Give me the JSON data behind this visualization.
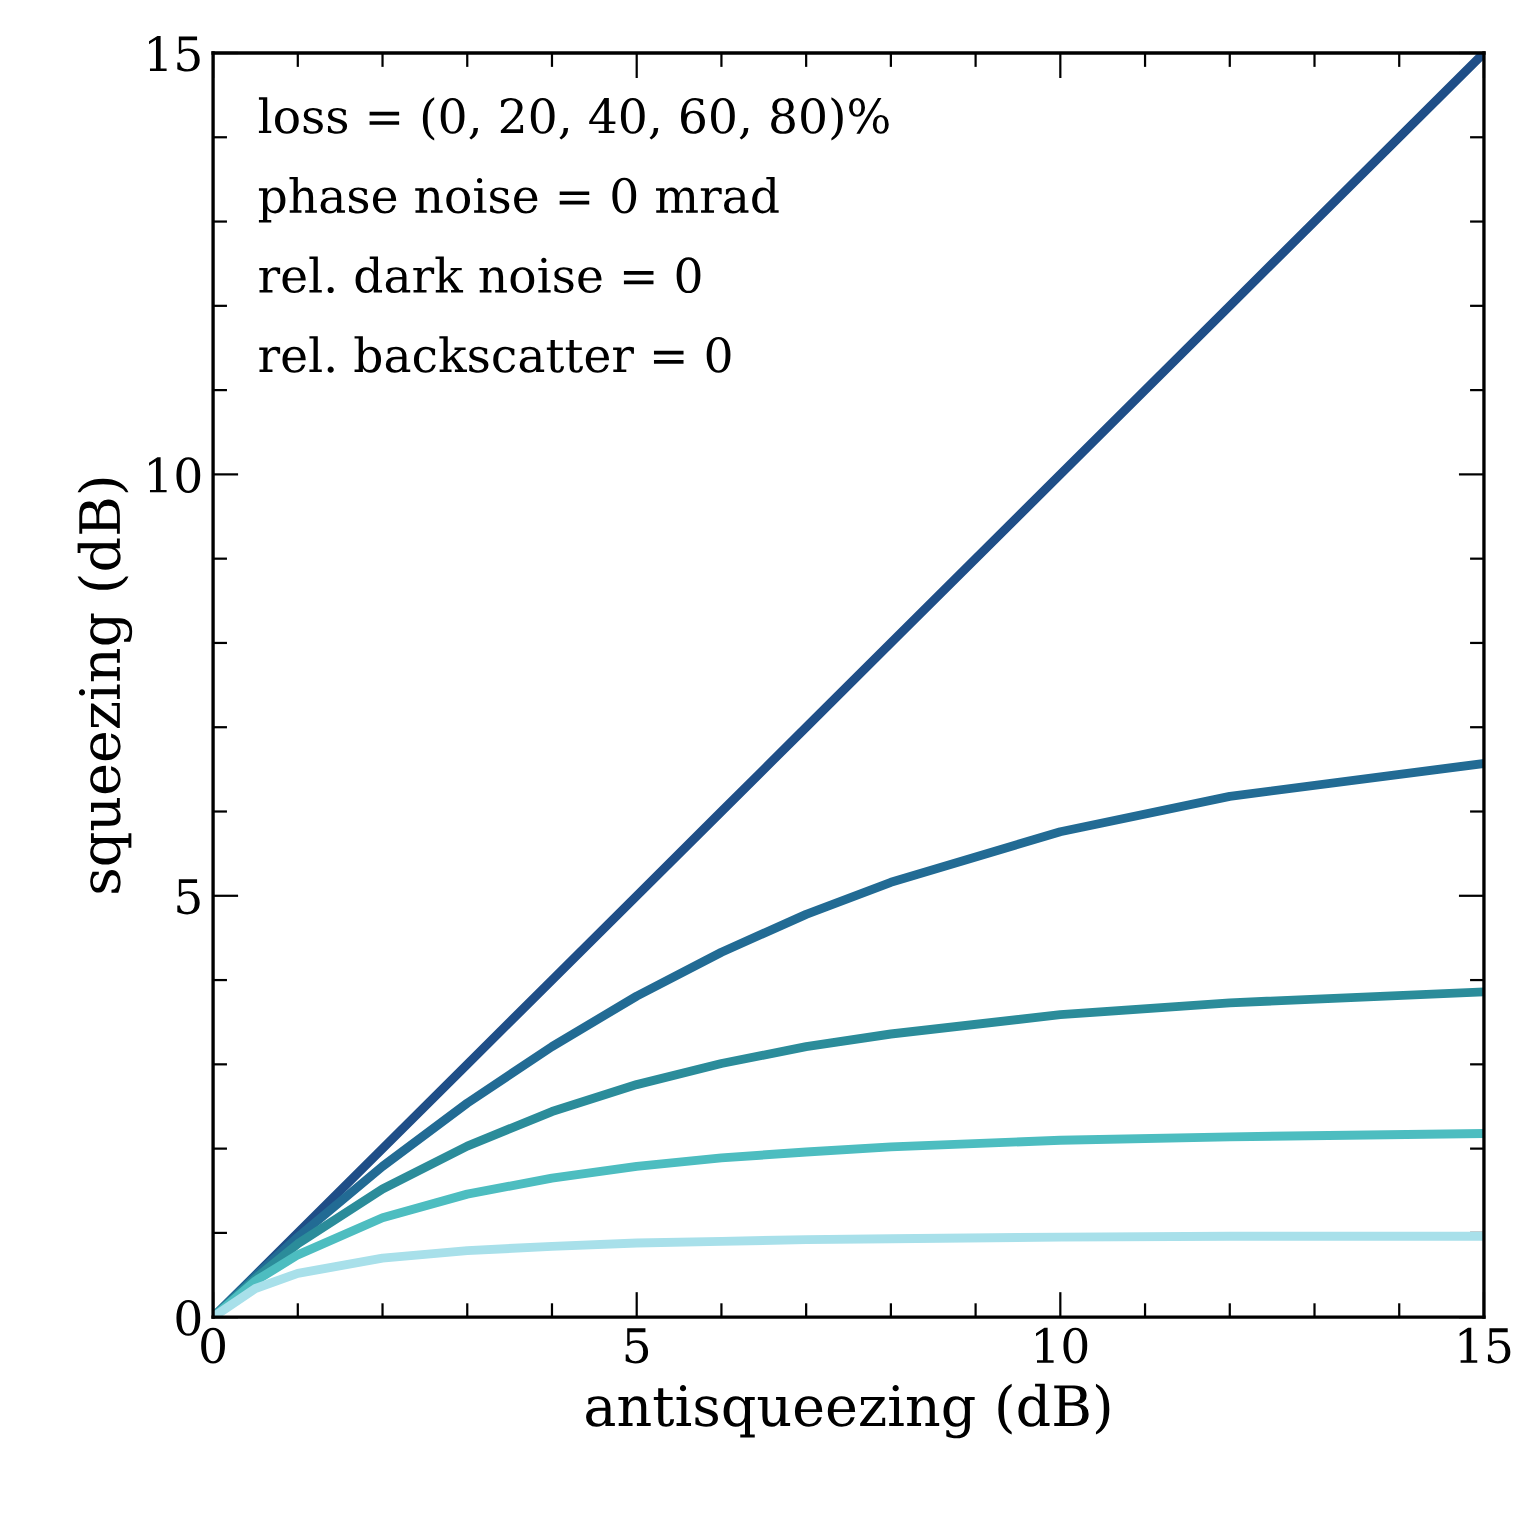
{
  "chart_data": {
    "type": "line",
    "xlabel": "antisqueezing (dB)",
    "ylabel": "squeezing (dB)",
    "annotations": [
      "loss = (0, 20, 40, 60, 80)%",
      "phase noise = 0 mrad",
      "rel. dark noise = 0",
      "rel. backscatter = 0"
    ],
    "x": [
      0,
      0.5,
      1,
      2,
      3,
      4,
      5,
      6,
      7,
      8,
      10,
      12,
      15
    ],
    "series": [
      {
        "color": "#1f4e87",
        "values": [
          0,
          0.5,
          1,
          2,
          3,
          4,
          5,
          6,
          7,
          8,
          10,
          12,
          15
        ]
      },
      {
        "color": "#226b94",
        "values": [
          0,
          0.49,
          0.95,
          1.79,
          2.54,
          3.21,
          3.81,
          4.33,
          4.78,
          5.16,
          5.76,
          6.18,
          6.57
        ]
      },
      {
        "color": "#2b8c9a",
        "values": [
          0,
          0.46,
          0.87,
          1.52,
          2.03,
          2.44,
          2.76,
          3.01,
          3.21,
          3.36,
          3.59,
          3.73,
          3.86
        ]
      },
      {
        "color": "#4dbdc0",
        "values": [
          0,
          0.43,
          0.74,
          1.18,
          1.46,
          1.65,
          1.79,
          1.89,
          1.96,
          2.02,
          2.1,
          2.14,
          2.18
        ]
      },
      {
        "color": "#a8e0ea",
        "values": [
          0,
          0.34,
          0.52,
          0.7,
          0.79,
          0.84,
          0.88,
          0.9,
          0.92,
          0.93,
          0.95,
          0.96,
          0.96
        ]
      }
    ],
    "xlim": [
      0,
      15
    ],
    "ylim": [
      0,
      15
    ],
    "xticks": [
      0,
      {
        "value": 1,
        "label": null
      },
      {
        "value": 2,
        "label": null
      },
      {
        "value": 3,
        "label": null
      },
      {
        "value": 4,
        "label": null
      },
      5,
      {
        "value": 6,
        "label": null
      },
      {
        "value": 7,
        "label": null
      },
      {
        "value": 8,
        "label": null
      },
      {
        "value": 9,
        "label": null
      },
      10,
      {
        "value": 11,
        "label": null
      },
      {
        "value": 12,
        "label": null
      },
      {
        "value": 13,
        "label": null
      },
      {
        "value": 14,
        "label": null
      },
      15
    ],
    "yticks": [
      0,
      {
        "value": 1,
        "label": null
      },
      {
        "value": 2,
        "label": null
      },
      {
        "value": 3,
        "label": null
      },
      {
        "value": 4,
        "label": null
      },
      5,
      {
        "value": 6,
        "label": null
      },
      {
        "value": 7,
        "label": null
      },
      {
        "value": 8,
        "label": null
      },
      {
        "value": 9,
        "label": null
      },
      10,
      {
        "value": 11,
        "label": null
      },
      {
        "value": 12,
        "label": null
      },
      {
        "value": 13,
        "label": null
      },
      {
        "value": 14,
        "label": null
      },
      15
    ],
    "marker": "none",
    "line_style": "solid"
  }
}
